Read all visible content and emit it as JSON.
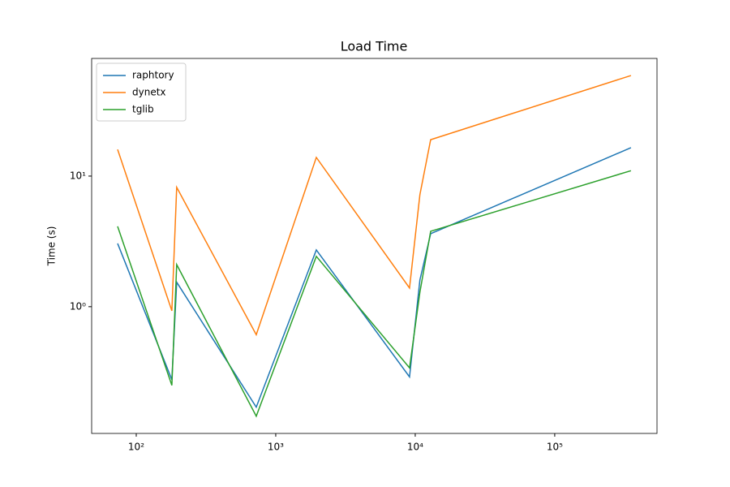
{
  "chart_data": {
    "type": "line",
    "title": "Load Time",
    "y_label": "Time (s)",
    "x": [
      73.5,
      180,
      195,
      725,
      1954,
      9100,
      10800,
      12900,
      352000
    ],
    "series": [
      {
        "name": "raphtory",
        "color": "#1f77b4",
        "values": [
          3.05,
          0.276,
          1.54,
          0.17,
          2.72,
          0.29,
          1.6,
          3.62,
          16.5
        ]
      },
      {
        "name": "dynetx",
        "color": "#ff7f0e",
        "values": [
          16.0,
          0.93,
          8.2,
          0.61,
          13.9,
          1.39,
          7.2,
          19.0,
          58.9
        ]
      },
      {
        "name": "tglib",
        "color": "#2ca02c",
        "values": [
          4.12,
          0.25,
          2.1,
          0.145,
          2.43,
          0.34,
          1.29,
          3.78,
          11.0
        ]
      }
    ],
    "x_log": true,
    "y_log": true,
    "xlim": [
      47.9,
      541000
    ],
    "ylim": [
      0.107,
      79.6
    ],
    "xticks": [
      {
        "value": 100,
        "label": "10²"
      },
      {
        "value": 1000,
        "label": "10³"
      },
      {
        "value": 10000,
        "label": "10⁴"
      },
      {
        "value": 100000,
        "label": "10⁵"
      }
    ],
    "yticks": [
      {
        "value": 1,
        "label": "10⁰"
      },
      {
        "value": 10,
        "label": "10¹"
      }
    ],
    "legend": "upper left",
    "grid": false
  }
}
